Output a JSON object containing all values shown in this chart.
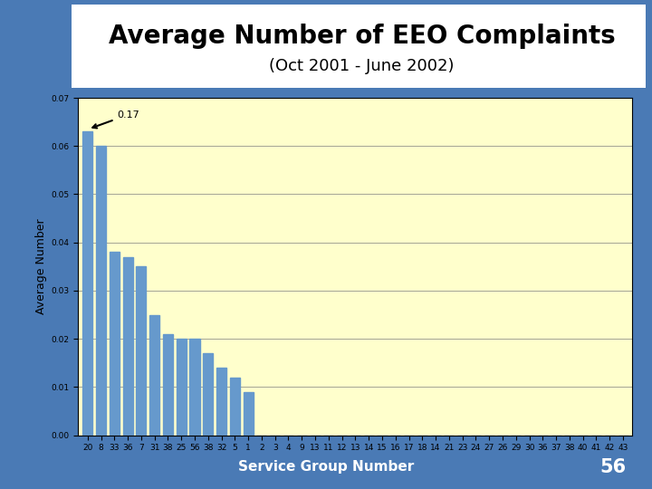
{
  "title": "Average Number of EEO Complaints",
  "subtitle": "(Oct 2001 - June 2002)",
  "xlabel": "Service Group Number",
  "ylabel": "Average Number",
  "page_number": "56",
  "plot_bg_color": "#ffffcc",
  "outer_bg_color": "#4a7ab5",
  "bar_color": "#6699cc",
  "title_bg_color": "#ffffff",
  "categories": [
    "20",
    "8",
    "33",
    "36",
    "7",
    "31",
    "38",
    "25",
    "56",
    "38",
    "32",
    "5",
    "1",
    "2",
    "3",
    "4",
    "9",
    "13",
    "11",
    "12",
    "13",
    "14",
    "15",
    "16",
    "17",
    "18",
    "14",
    "21",
    "23",
    "24",
    "27",
    "26",
    "29",
    "30",
    "36",
    "37",
    "38",
    "40",
    "41",
    "42",
    "43"
  ],
  "values": [
    0.063,
    0.06,
    0.038,
    0.037,
    0.035,
    0.025,
    0.021,
    0.02,
    0.02,
    0.017,
    0.014,
    0.012,
    0.009,
    0.0,
    0.0,
    0.0,
    0.0,
    0.0,
    0.0,
    0.0,
    0.0,
    0.0,
    0.0,
    0.0,
    0.0,
    0.0,
    0.0,
    0.0,
    0.0,
    0.0,
    0.0,
    0.0,
    0.0,
    0.0,
    0.0,
    0.0,
    0.0,
    0.0,
    0.0,
    0.0,
    0.0
  ],
  "ylim": [
    0.0,
    0.07
  ],
  "yticks": [
    0.0,
    0.01,
    0.02,
    0.03,
    0.04,
    0.05,
    0.06,
    0.07
  ],
  "annotation_text": "0.17",
  "title_fontsize": 20,
  "subtitle_fontsize": 13,
  "tick_fontsize": 6.5,
  "ylabel_fontsize": 9,
  "xlabel_fontsize": 11
}
